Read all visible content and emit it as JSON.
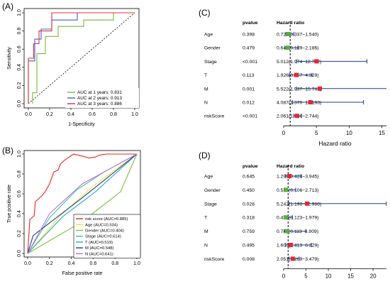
{
  "chart_data": [
    {
      "panel": "(A)",
      "type": "line",
      "xlabel": "1-Specificity",
      "ylabel": "Sensitivity",
      "xlim": [
        0,
        1
      ],
      "ylim": [
        0,
        1
      ],
      "xticks": [
        "0.0",
        "0.2",
        "0.4",
        "0.6",
        "0.8",
        "1.0"
      ],
      "yticks": [
        "0.0",
        "0.2",
        "0.4",
        "0.6",
        "0.8",
        "1.0"
      ],
      "legend_position": "bottom-right",
      "reference_line": "diagonal",
      "series": [
        {
          "name": "AUC at 1 years: 0.831",
          "color": "#78b83a",
          "points": [
            [
              0.04,
              0
            ],
            [
              0.04,
              0.12
            ],
            [
              0.08,
              0.12
            ],
            [
              0.08,
              0.55
            ],
            [
              0.16,
              0.55
            ],
            [
              0.16,
              0.74
            ],
            [
              0.28,
              0.74
            ],
            [
              0.28,
              0.85
            ],
            [
              0.52,
              0.85
            ],
            [
              0.52,
              0.92
            ],
            [
              0.8,
              0.92
            ],
            [
              0.8,
              1
            ],
            [
              1,
              1
            ]
          ]
        },
        {
          "name": "AUC at 2 years: 0.913",
          "color": "#3a63c8",
          "points": [
            [
              0,
              0
            ],
            [
              0,
              0.47
            ],
            [
              0.06,
              0.47
            ],
            [
              0.06,
              0.71
            ],
            [
              0.12,
              0.71
            ],
            [
              0.12,
              0.82
            ],
            [
              0.22,
              0.82
            ],
            [
              0.22,
              0.92
            ],
            [
              0.46,
              0.92
            ],
            [
              0.46,
              1
            ],
            [
              1,
              1
            ]
          ]
        },
        {
          "name": "AUC at 3 years: 0.886",
          "color": "#e0303a",
          "points": [
            [
              0,
              0
            ],
            [
              0,
              0.5
            ],
            [
              0.05,
              0.5
            ],
            [
              0.05,
              0.66
            ],
            [
              0.1,
              0.66
            ],
            [
              0.1,
              0.8
            ],
            [
              0.22,
              0.8
            ],
            [
              0.22,
              1
            ],
            [
              1,
              1
            ]
          ]
        }
      ]
    },
    {
      "panel": "(B)",
      "type": "line",
      "xlabel": "False positive rate",
      "ylabel": "True positive rate",
      "xlim": [
        0,
        1
      ],
      "ylim": [
        0,
        1
      ],
      "xticks": [
        "0.0",
        "0.2",
        "0.4",
        "0.6",
        "0.8",
        "1.0"
      ],
      "yticks": [
        "0.0",
        "0.2",
        "0.4",
        "0.6",
        "0.8",
        "1.0"
      ],
      "legend_position": "bottom-right",
      "series": [
        {
          "name": "risk score (AUC=0.885)",
          "color": "#e8251f",
          "points": [
            [
              0,
              0
            ],
            [
              0.02,
              0.34
            ],
            [
              0.06,
              0.38
            ],
            [
              0.07,
              0.52
            ],
            [
              0.1,
              0.55
            ],
            [
              0.13,
              0.58
            ],
            [
              0.16,
              0.62
            ],
            [
              0.2,
              0.7
            ],
            [
              0.24,
              0.82
            ],
            [
              0.28,
              0.84
            ],
            [
              0.3,
              0.9
            ],
            [
              0.34,
              0.94
            ],
            [
              0.38,
              0.97
            ],
            [
              0.42,
              1
            ],
            [
              0.5,
              0.98
            ],
            [
              0.56,
              0.96
            ],
            [
              0.62,
              0.97
            ],
            [
              0.66,
              0.99
            ],
            [
              0.72,
              1
            ],
            [
              1,
              1
            ]
          ]
        },
        {
          "name": "Age (AUC=0.534)",
          "color": "#f2e23a",
          "points": [
            [
              0,
              0
            ],
            [
              0.3,
              0.38
            ],
            [
              0.6,
              0.68
            ],
            [
              0.8,
              0.84
            ],
            [
              1,
              1
            ]
          ]
        },
        {
          "name": "Gender (AUC=0.404)",
          "color": "#7cbf3a",
          "points": [
            [
              0,
              0
            ],
            [
              0.5,
              0.32
            ],
            [
              0.85,
              0.62
            ],
            [
              1,
              1
            ]
          ]
        },
        {
          "name": "Stage (AUC=0.614)",
          "color": "#3ec29b",
          "points": [
            [
              0,
              0
            ],
            [
              0.2,
              0.36
            ],
            [
              0.45,
              0.64
            ],
            [
              0.7,
              0.82
            ],
            [
              1,
              1
            ]
          ]
        },
        {
          "name": "T (AUC=0.519)",
          "color": "#2aa6d8",
          "points": [
            [
              0,
              0
            ],
            [
              0.32,
              0.37
            ],
            [
              0.62,
              0.62
            ],
            [
              1,
              1
            ]
          ]
        },
        {
          "name": "M (AUC=0.548)",
          "color": "#1f3f8a",
          "points": [
            [
              0,
              0
            ],
            [
              0.05,
              0.18
            ],
            [
              0.5,
              0.56
            ],
            [
              1,
              1
            ]
          ]
        },
        {
          "name": "N (AUC=0.641)",
          "color": "#c16be0",
          "points": [
            [
              0,
              0
            ],
            [
              0.2,
              0.4
            ],
            [
              0.5,
              0.7
            ],
            [
              0.8,
              0.88
            ],
            [
              1,
              1
            ]
          ]
        }
      ]
    },
    {
      "panel": "(C)",
      "type": "forest",
      "col_pvalue": "pvalue",
      "col_hr": "Hazard ratio",
      "xlabel": "Hazard ratio",
      "xlim": [
        0,
        15.7
      ],
      "xticks": [
        0,
        5,
        10,
        15
      ],
      "reference": 1,
      "rows": [
        {
          "label": "Age",
          "pvalue": "0.398",
          "hr_text": "0.721(0.337−1.540)",
          "hr": 0.721,
          "lower": 0.337,
          "upper": 1.54,
          "color": "#5cae3c"
        },
        {
          "label": "Gender",
          "pvalue": "0.479",
          "hr_text": "0.643(0.189−2.186)",
          "hr": 0.643,
          "lower": 0.189,
          "upper": 2.186,
          "color": "#5cae3c"
        },
        {
          "label": "Stage",
          "pvalue": "<0.001",
          "hr_text": "5.012(1.974−12.722)",
          "hr": 5.012,
          "lower": 1.974,
          "upper": 12.722,
          "color": "#e8252f"
        },
        {
          "label": "T",
          "pvalue": "0.113",
          "hr_text": "1.926(0.857−4.329)",
          "hr": 1.926,
          "lower": 0.857,
          "upper": 4.329,
          "color": "#e8252f"
        },
        {
          "label": "M",
          "pvalue": "0.001",
          "hr_text": "5.522(1.937−15.742)",
          "hr": 5.522,
          "lower": 1.937,
          "upper": 15.742,
          "color": "#e8252f"
        },
        {
          "label": "N",
          "pvalue": "0.012",
          "hr_text": "4.087(1.370−12.193)",
          "hr": 4.087,
          "lower": 1.37,
          "upper": 12.193,
          "color": "#e8252f"
        },
        {
          "label": "riskScore",
          "pvalue": "<0.001",
          "hr_text": "2.061(1.548−2.744)",
          "hr": 2.061,
          "lower": 1.548,
          "upper": 2.744,
          "color": "#e8252f"
        }
      ]
    },
    {
      "panel": "(D)",
      "type": "forest",
      "col_pvalue": "pvalue",
      "col_hr": "Hazard ratio",
      "xlabel": "Hazard ratio",
      "xlim": [
        0,
        23
      ],
      "xticks": [
        0,
        5,
        10,
        15,
        20
      ],
      "reference": 1,
      "rows": [
        {
          "label": "Age",
          "pvalue": "0.645",
          "hr_text": "1.299(0.428−3.945)",
          "hr": 1.299,
          "lower": 0.428,
          "upper": 3.945,
          "color": "#e8252f"
        },
        {
          "label": "Gender",
          "pvalue": "0.450",
          "hr_text": "0.535(0.106−2.713)",
          "hr": 0.535,
          "lower": 0.106,
          "upper": 2.713,
          "color": "#5cae3c"
        },
        {
          "label": "Stage",
          "pvalue": "0.028",
          "hr_text": "5.242(1.196−22.966)",
          "hr": 5.242,
          "lower": 1.196,
          "upper": 22.966,
          "color": "#e8252f"
        },
        {
          "label": "T",
          "pvalue": "0.318",
          "hr_text": "0.493(0.123−1.979)",
          "hr": 0.493,
          "lower": 0.123,
          "upper": 1.979,
          "color": "#5cae3c"
        },
        {
          "label": "M",
          "pvalue": "0.759",
          "hr_text": "0.744(0.113−4.909)",
          "hr": 0.744,
          "lower": 0.113,
          "upper": 4.909,
          "color": "#5cae3c"
        },
        {
          "label": "N",
          "pvalue": "0.495",
          "hr_text": "1.603(0.413−6.229)",
          "hr": 1.603,
          "lower": 0.413,
          "upper": 6.229,
          "color": "#e8252f"
        },
        {
          "label": "riskScore",
          "pvalue": "0.008",
          "hr_text": "2.051(1.209−3.479)",
          "hr": 2.051,
          "lower": 1.209,
          "upper": 3.479,
          "color": "#e8252f"
        }
      ]
    }
  ],
  "ci_color": "#1f3f8a",
  "reference_line_color": "#000000"
}
